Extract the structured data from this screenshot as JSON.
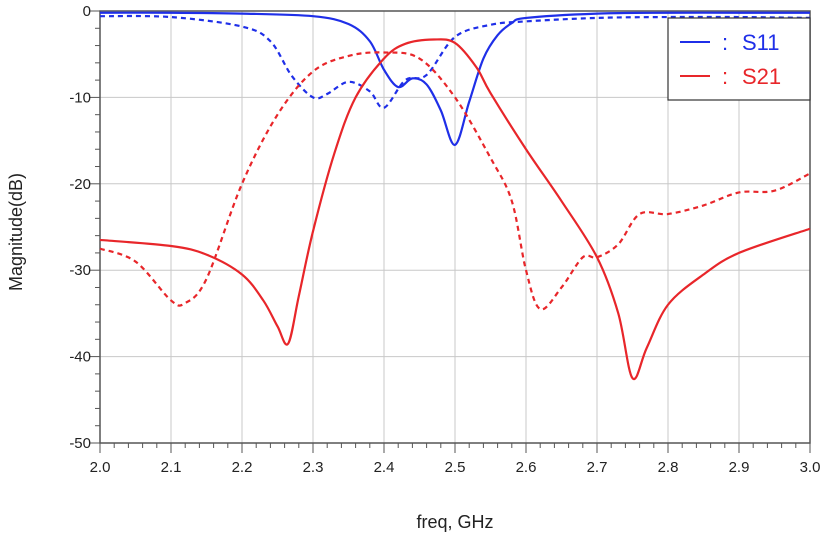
{
  "chart_data": {
    "type": "line",
    "xlabel": "freq, GHz",
    "ylabel": "Magnitude(dB)",
    "xlim": [
      2.0,
      3.0
    ],
    "ylim": [
      -50,
      0
    ],
    "x_ticks": [
      "2.0",
      "2.1",
      "2.2",
      "2.3",
      "2.4",
      "2.5",
      "2.6",
      "2.7",
      "2.8",
      "2.9",
      "3.0"
    ],
    "y_ticks": [
      "0",
      "-10",
      "-20",
      "-30",
      "-40",
      "-50"
    ],
    "grid": true,
    "legend_position": "top-right",
    "series": [
      {
        "name": "S11",
        "color": "#1f2fe8",
        "dash": "solid",
        "x": [
          2.0,
          2.1,
          2.2,
          2.3,
          2.35,
          2.38,
          2.4,
          2.42,
          2.44,
          2.46,
          2.48,
          2.5,
          2.52,
          2.54,
          2.56,
          2.58,
          2.6,
          2.7,
          2.8,
          2.9,
          3.0
        ],
        "y": [
          -0.2,
          -0.2,
          -0.3,
          -0.6,
          -1.5,
          -3.5,
          -6.8,
          -8.8,
          -7.8,
          -8.5,
          -11.5,
          -15.5,
          -10.5,
          -5.5,
          -2.8,
          -1.4,
          -0.8,
          -0.3,
          -0.2,
          -0.2,
          -0.2
        ]
      },
      {
        "name": "",
        "color": "#1f2fe8",
        "dash": "dashed",
        "x": [
          2.0,
          2.1,
          2.2,
          2.24,
          2.27,
          2.3,
          2.32,
          2.35,
          2.38,
          2.4,
          2.43,
          2.46,
          2.5,
          2.55,
          2.6,
          2.7,
          2.8,
          2.9,
          3.0
        ],
        "y": [
          -0.6,
          -0.7,
          -1.8,
          -3.5,
          -7.5,
          -10.0,
          -9.6,
          -8.2,
          -9.3,
          -11.2,
          -8.0,
          -7.4,
          -3.0,
          -1.6,
          -1.2,
          -0.8,
          -0.7,
          -0.7,
          -0.8
        ]
      },
      {
        "name": "S21",
        "color": "#e8262a",
        "dash": "solid",
        "x": [
          2.0,
          2.1,
          2.15,
          2.2,
          2.23,
          2.25,
          2.265,
          2.28,
          2.3,
          2.33,
          2.36,
          2.4,
          2.43,
          2.47,
          2.5,
          2.53,
          2.55,
          2.6,
          2.65,
          2.7,
          2.73,
          2.75,
          2.77,
          2.8,
          2.85,
          2.9,
          3.0
        ],
        "y": [
          -26.5,
          -27.2,
          -28.2,
          -30.5,
          -33.5,
          -36.5,
          -38.5,
          -33.0,
          -25.5,
          -16.5,
          -10.0,
          -5.5,
          -3.8,
          -3.3,
          -3.7,
          -6.5,
          -9.5,
          -16.0,
          -22.0,
          -28.5,
          -35.0,
          -42.5,
          -39.0,
          -34.0,
          -30.5,
          -28.0,
          -25.2
        ]
      },
      {
        "name": "",
        "color": "#e8262a",
        "dash": "dashed",
        "x": [
          2.0,
          2.05,
          2.1,
          2.12,
          2.15,
          2.2,
          2.25,
          2.3,
          2.35,
          2.4,
          2.45,
          2.5,
          2.55,
          2.58,
          2.6,
          2.62,
          2.65,
          2.68,
          2.7,
          2.73,
          2.76,
          2.8,
          2.85,
          2.9,
          2.95,
          3.0
        ],
        "y": [
          -27.5,
          -29.0,
          -33.5,
          -33.8,
          -31.0,
          -20.0,
          -12.0,
          -7.0,
          -5.2,
          -4.8,
          -5.5,
          -10.0,
          -17.0,
          -22.0,
          -30.0,
          -34.5,
          -32.0,
          -28.5,
          -28.5,
          -27.0,
          -23.5,
          -23.5,
          -22.5,
          -21.0,
          -20.8,
          -18.8
        ]
      }
    ]
  }
}
